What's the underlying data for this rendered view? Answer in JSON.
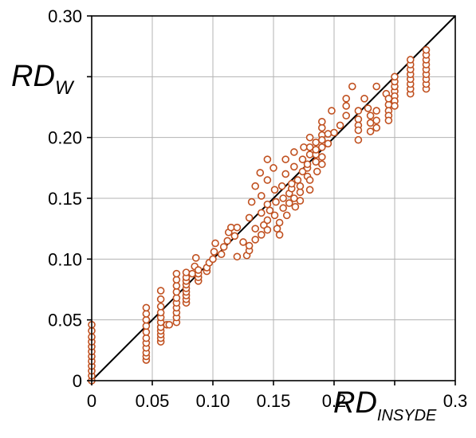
{
  "chart_data": {
    "type": "scatter",
    "xlabel": {
      "main": "RD",
      "sub": "INSYDE"
    },
    "ylabel": {
      "main": "RD",
      "sub": "W"
    },
    "xlim": [
      0,
      0.3
    ],
    "ylim": [
      0,
      0.3
    ],
    "grid": true,
    "x_ticks": [
      0,
      0.05,
      0.1,
      0.15,
      0.2,
      0.25,
      0.3
    ],
    "x_tick_labels": [
      "0",
      "0.05",
      "0.10",
      "0.15",
      "0.2",
      "",
      "0.3"
    ],
    "y_ticks": [
      0,
      0.05,
      0.1,
      0.15,
      0.2,
      0.25,
      0.3
    ],
    "y_tick_labels": [
      "0",
      "0.05",
      "0.10",
      "0.15",
      "0.20",
      "",
      "0.30"
    ],
    "reference_line": {
      "type": "identity",
      "from": [
        0,
        0
      ],
      "to": [
        0.3,
        0.3
      ]
    },
    "marker": {
      "shape": "open-circle",
      "color": "#c0501f"
    },
    "series": [
      {
        "points": [
          [
            0.0,
            0.0
          ],
          [
            0.0,
            0.004
          ],
          [
            0.0,
            0.008
          ],
          [
            0.0,
            0.012
          ],
          [
            0.0,
            0.016
          ],
          [
            0.0,
            0.02
          ],
          [
            0.0,
            0.024
          ],
          [
            0.0,
            0.028
          ],
          [
            0.0,
            0.032
          ],
          [
            0.0,
            0.036
          ],
          [
            0.0,
            0.041
          ],
          [
            0.0,
            0.046
          ],
          [
            0.045,
            0.017
          ],
          [
            0.045,
            0.02
          ],
          [
            0.045,
            0.023
          ],
          [
            0.045,
            0.027
          ],
          [
            0.045,
            0.031
          ],
          [
            0.045,
            0.035
          ],
          [
            0.045,
            0.04
          ],
          [
            0.045,
            0.045
          ],
          [
            0.045,
            0.05
          ],
          [
            0.045,
            0.055
          ],
          [
            0.045,
            0.06
          ],
          [
            0.057,
            0.032
          ],
          [
            0.057,
            0.035
          ],
          [
            0.057,
            0.038
          ],
          [
            0.057,
            0.041
          ],
          [
            0.057,
            0.044
          ],
          [
            0.057,
            0.048
          ],
          [
            0.057,
            0.052
          ],
          [
            0.057,
            0.056
          ],
          [
            0.057,
            0.061
          ],
          [
            0.057,
            0.067
          ],
          [
            0.057,
            0.074
          ],
          [
            0.062,
            0.046
          ],
          [
            0.064,
            0.046
          ],
          [
            0.07,
            0.048
          ],
          [
            0.07,
            0.052
          ],
          [
            0.07,
            0.056
          ],
          [
            0.07,
            0.06
          ],
          [
            0.07,
            0.064
          ],
          [
            0.07,
            0.068
          ],
          [
            0.07,
            0.073
          ],
          [
            0.07,
            0.078
          ],
          [
            0.07,
            0.083
          ],
          [
            0.07,
            0.088
          ],
          [
            0.078,
            0.064
          ],
          [
            0.078,
            0.067
          ],
          [
            0.078,
            0.07
          ],
          [
            0.078,
            0.073
          ],
          [
            0.078,
            0.076
          ],
          [
            0.078,
            0.079
          ],
          [
            0.078,
            0.082
          ],
          [
            0.078,
            0.085
          ],
          [
            0.078,
            0.089
          ],
          [
            0.083,
            0.088
          ],
          [
            0.085,
            0.094
          ],
          [
            0.086,
            0.101
          ],
          [
            0.088,
            0.082
          ],
          [
            0.088,
            0.085
          ],
          [
            0.088,
            0.088
          ],
          [
            0.088,
            0.091
          ],
          [
            0.095,
            0.09
          ],
          [
            0.095,
            0.093
          ],
          [
            0.097,
            0.097
          ],
          [
            0.1,
            0.1
          ],
          [
            0.101,
            0.106
          ],
          [
            0.102,
            0.113
          ],
          [
            0.107,
            0.104
          ],
          [
            0.109,
            0.11
          ],
          [
            0.112,
            0.115
          ],
          [
            0.113,
            0.122
          ],
          [
            0.115,
            0.126
          ],
          [
            0.118,
            0.119
          ],
          [
            0.12,
            0.126
          ],
          [
            0.12,
            0.102
          ],
          [
            0.125,
            0.114
          ],
          [
            0.128,
            0.103
          ],
          [
            0.13,
            0.107
          ],
          [
            0.13,
            0.111
          ],
          [
            0.13,
            0.134
          ],
          [
            0.132,
            0.147
          ],
          [
            0.135,
            0.16
          ],
          [
            0.135,
            0.116
          ],
          [
            0.135,
            0.125
          ],
          [
            0.139,
            0.171
          ],
          [
            0.14,
            0.152
          ],
          [
            0.14,
            0.138
          ],
          [
            0.14,
            0.12
          ],
          [
            0.142,
            0.128
          ],
          [
            0.145,
            0.182
          ],
          [
            0.145,
            0.165
          ],
          [
            0.145,
            0.145
          ],
          [
            0.145,
            0.124
          ],
          [
            0.145,
            0.132
          ],
          [
            0.147,
            0.14
          ],
          [
            0.15,
            0.175
          ],
          [
            0.151,
            0.157
          ],
          [
            0.151,
            0.136
          ],
          [
            0.152,
            0.147
          ],
          [
            0.153,
            0.125
          ],
          [
            0.155,
            0.12
          ],
          [
            0.155,
            0.13
          ],
          [
            0.157,
            0.16
          ],
          [
            0.158,
            0.142
          ],
          [
            0.158,
            0.15
          ],
          [
            0.16,
            0.17
          ],
          [
            0.16,
            0.182
          ],
          [
            0.161,
            0.136
          ],
          [
            0.163,
            0.146
          ],
          [
            0.163,
            0.154
          ],
          [
            0.165,
            0.158
          ],
          [
            0.165,
            0.162
          ],
          [
            0.167,
            0.15
          ],
          [
            0.167,
            0.176
          ],
          [
            0.167,
            0.188
          ],
          [
            0.168,
            0.143
          ],
          [
            0.17,
            0.165
          ],
          [
            0.172,
            0.148
          ],
          [
            0.172,
            0.155
          ],
          [
            0.172,
            0.16
          ],
          [
            0.174,
            0.172
          ],
          [
            0.174,
            0.182
          ],
          [
            0.175,
            0.192
          ],
          [
            0.178,
            0.168
          ],
          [
            0.178,
            0.175
          ],
          [
            0.178,
            0.178
          ],
          [
            0.18,
            0.186
          ],
          [
            0.18,
            0.192
          ],
          [
            0.18,
            0.2
          ],
          [
            0.18,
            0.157
          ],
          [
            0.18,
            0.165
          ],
          [
            0.185,
            0.18
          ],
          [
            0.185,
            0.186
          ],
          [
            0.185,
            0.19
          ],
          [
            0.185,
            0.196
          ],
          [
            0.186,
            0.172
          ],
          [
            0.19,
            0.202
          ],
          [
            0.19,
            0.208
          ],
          [
            0.19,
            0.213
          ],
          [
            0.19,
            0.192
          ],
          [
            0.19,
            0.198
          ],
          [
            0.19,
            0.184
          ],
          [
            0.19,
            0.178
          ],
          [
            0.195,
            0.195
          ],
          [
            0.195,
            0.203
          ],
          [
            0.198,
            0.222
          ],
          [
            0.2,
            0.204
          ],
          [
            0.205,
            0.21
          ],
          [
            0.21,
            0.232
          ],
          [
            0.21,
            0.226
          ],
          [
            0.21,
            0.218
          ],
          [
            0.215,
            0.242
          ],
          [
            0.22,
            0.222
          ],
          [
            0.22,
            0.215
          ],
          [
            0.22,
            0.21
          ],
          [
            0.22,
            0.206
          ],
          [
            0.22,
            0.198
          ],
          [
            0.225,
            0.232
          ],
          [
            0.228,
            0.224
          ],
          [
            0.23,
            0.218
          ],
          [
            0.23,
            0.212
          ],
          [
            0.23,
            0.205
          ],
          [
            0.235,
            0.242
          ],
          [
            0.235,
            0.208
          ],
          [
            0.235,
            0.214
          ],
          [
            0.235,
            0.222
          ],
          [
            0.243,
            0.236
          ],
          [
            0.245,
            0.227
          ],
          [
            0.245,
            0.222
          ],
          [
            0.245,
            0.218
          ],
          [
            0.245,
            0.214
          ],
          [
            0.245,
            0.232
          ],
          [
            0.25,
            0.238
          ],
          [
            0.25,
            0.234
          ],
          [
            0.25,
            0.23
          ],
          [
            0.25,
            0.226
          ],
          [
            0.25,
            0.242
          ],
          [
            0.25,
            0.246
          ],
          [
            0.25,
            0.25
          ],
          [
            0.263,
            0.236
          ],
          [
            0.263,
            0.24
          ],
          [
            0.263,
            0.244
          ],
          [
            0.263,
            0.248
          ],
          [
            0.263,
            0.252
          ],
          [
            0.263,
            0.256
          ],
          [
            0.263,
            0.26
          ],
          [
            0.263,
            0.264
          ],
          [
            0.276,
            0.24
          ],
          [
            0.276,
            0.244
          ],
          [
            0.276,
            0.248
          ],
          [
            0.276,
            0.252
          ],
          [
            0.276,
            0.256
          ],
          [
            0.276,
            0.26
          ],
          [
            0.276,
            0.264
          ],
          [
            0.276,
            0.268
          ],
          [
            0.276,
            0.272
          ]
        ]
      }
    ]
  }
}
